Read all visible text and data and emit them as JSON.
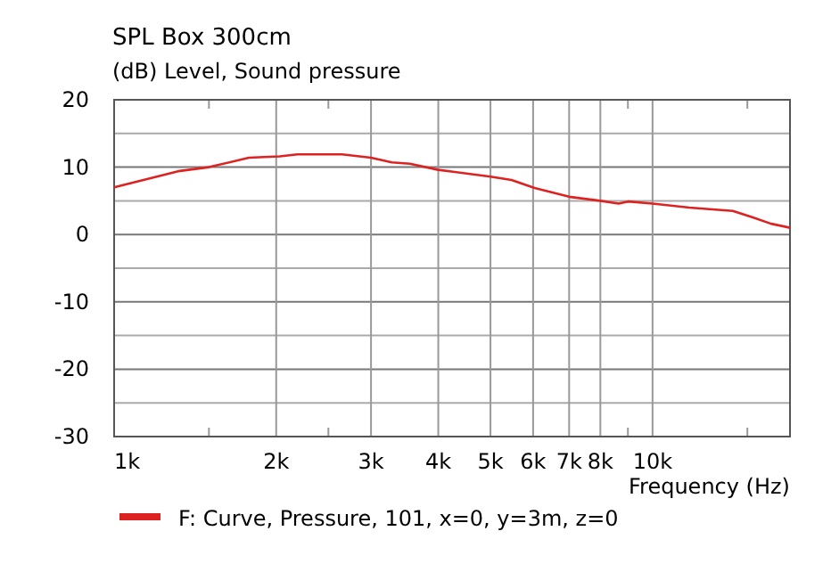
{
  "chart_data": {
    "type": "line",
    "title": "SPL Box 300cm",
    "subtitle": "(dB)  Level, Sound pressure",
    "xlabel": "Frequency  (Hz)",
    "log": "x",
    "grid": true,
    "legend": "bottom",
    "line_style": "solid",
    "marker": "none",
    "xlim": [
      1000,
      18000
    ],
    "xticks": [
      {
        "value": 1000,
        "label": "1k"
      },
      {
        "value": 1500,
        "label": null
      },
      {
        "value": 2000,
        "label": "2k"
      },
      {
        "value": 2500,
        "label": null
      },
      {
        "value": 3000,
        "label": "3k"
      },
      {
        "value": 4000,
        "label": "4k"
      },
      {
        "value": 5000,
        "label": "5k"
      },
      {
        "value": 6000,
        "label": "6k"
      },
      {
        "value": 7000,
        "label": "7k"
      },
      {
        "value": 8000,
        "label": "8k"
      },
      {
        "value": 9000,
        "label": null
      },
      {
        "value": 10000,
        "label": "10k"
      },
      {
        "value": 15000,
        "label": null
      }
    ],
    "ylim": [
      -30,
      20
    ],
    "yticks": [
      -30,
      {
        "value": -25,
        "label": null
      },
      -20,
      {
        "value": -15,
        "label": null
      },
      -10,
      {
        "value": -5,
        "label": null
      },
      0,
      {
        "value": 5,
        "label": null
      },
      10,
      {
        "value": 15,
        "label": null
      },
      20
    ],
    "x": [
      1000,
      1315,
      1500,
      1780,
      2030,
      2190,
      2650,
      3000,
      3280,
      3540,
      4000,
      5000,
      5470,
      6040,
      7000,
      8000,
      8650,
      9000,
      10000,
      11700,
      14100,
      15400,
      16600,
      18000
    ],
    "series": [
      {
        "name": "F: Curve, Pressure, 101, x=0, y=3m, z=0",
        "color": "#dd2222",
        "values": [
          7.0,
          9.4,
          10.0,
          11.4,
          11.6,
          11.9,
          11.9,
          11.4,
          10.7,
          10.5,
          9.6,
          8.6,
          8.1,
          6.9,
          5.6,
          5.0,
          4.6,
          4.9,
          4.6,
          4.0,
          3.5,
          2.5,
          1.6,
          1.0
        ]
      }
    ]
  }
}
